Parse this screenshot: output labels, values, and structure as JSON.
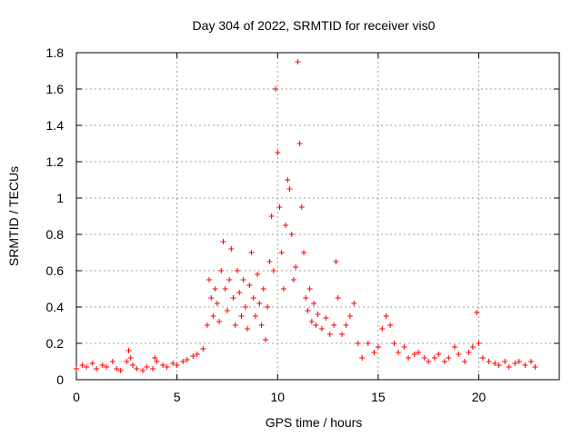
{
  "chart_data": {
    "type": "scatter",
    "title": "Day 304 of 2022, SRMTID for receiver vis0",
    "xlabel": "GPS time / hours",
    "ylabel": "SRMTID / TECUs",
    "xlim": [
      0,
      24
    ],
    "ylim": [
      0,
      1.8
    ],
    "x_ticks": [
      0,
      5,
      10,
      15,
      20
    ],
    "x_tick_labels": [
      "0",
      "5",
      "10",
      "15",
      "20"
    ],
    "y_ticks": [
      0,
      0.2,
      0.4,
      0.6,
      0.8,
      1.0,
      1.2,
      1.4,
      1.6,
      1.8
    ],
    "y_tick_labels": [
      "0",
      "0.2",
      "0.4",
      "0.6",
      "0.8",
      "1",
      "1.2",
      "1.4",
      "1.6",
      "1.8"
    ],
    "grid": true,
    "marker": "plus",
    "color": "#ff0000",
    "series": [
      {
        "name": "SRMTID vis0",
        "x": [
          0.0,
          0.3,
          0.5,
          0.8,
          1.0,
          1.3,
          1.5,
          1.8,
          2.0,
          2.2,
          2.5,
          2.6,
          2.7,
          2.8,
          3.0,
          3.3,
          3.5,
          3.8,
          3.9,
          4.0,
          4.3,
          4.5,
          4.8,
          5.0,
          5.3,
          5.5,
          5.8,
          6.0,
          6.3,
          6.5,
          6.6,
          6.7,
          6.8,
          6.9,
          7.0,
          7.1,
          7.2,
          7.3,
          7.4,
          7.5,
          7.6,
          7.7,
          7.8,
          7.9,
          8.0,
          8.1,
          8.2,
          8.3,
          8.4,
          8.5,
          8.6,
          8.7,
          8.8,
          8.9,
          9.0,
          9.1,
          9.2,
          9.3,
          9.4,
          9.5,
          9.6,
          9.7,
          9.8,
          9.9,
          10.0,
          10.1,
          10.2,
          10.3,
          10.4,
          10.5,
          10.6,
          10.7,
          10.8,
          10.9,
          11.0,
          11.1,
          11.2,
          11.3,
          11.4,
          11.5,
          11.6,
          11.7,
          11.8,
          11.9,
          12.0,
          12.2,
          12.4,
          12.6,
          12.8,
          12.9,
          13.0,
          13.2,
          13.4,
          13.6,
          13.8,
          14.0,
          14.2,
          14.5,
          14.8,
          15.0,
          15.2,
          15.4,
          15.6,
          15.8,
          16.0,
          16.3,
          16.5,
          16.8,
          17.0,
          17.3,
          17.5,
          17.8,
          18.0,
          18.3,
          18.5,
          18.8,
          19.0,
          19.3,
          19.5,
          19.7,
          19.9,
          20.0,
          20.2,
          20.5,
          20.8,
          21.0,
          21.3,
          21.5,
          21.8,
          22.0,
          22.3,
          22.6,
          22.8
        ],
        "y": [
          0.06,
          0.08,
          0.07,
          0.09,
          0.06,
          0.08,
          0.07,
          0.1,
          0.06,
          0.05,
          0.1,
          0.16,
          0.12,
          0.08,
          0.06,
          0.05,
          0.07,
          0.06,
          0.12,
          0.1,
          0.08,
          0.07,
          0.09,
          0.08,
          0.1,
          0.11,
          0.13,
          0.14,
          0.17,
          0.3,
          0.55,
          0.45,
          0.35,
          0.5,
          0.42,
          0.32,
          0.6,
          0.76,
          0.5,
          0.38,
          0.55,
          0.72,
          0.45,
          0.3,
          0.6,
          0.48,
          0.35,
          0.55,
          0.4,
          0.28,
          0.52,
          0.7,
          0.45,
          0.35,
          0.58,
          0.42,
          0.3,
          0.5,
          0.22,
          0.4,
          0.65,
          0.9,
          0.6,
          1.6,
          1.25,
          0.95,
          0.7,
          0.5,
          0.85,
          1.1,
          1.05,
          0.8,
          0.55,
          0.62,
          1.75,
          1.3,
          0.95,
          0.7,
          0.45,
          0.38,
          0.5,
          0.32,
          0.42,
          0.3,
          0.36,
          0.28,
          0.34,
          0.25,
          0.3,
          0.65,
          0.45,
          0.25,
          0.3,
          0.35,
          0.42,
          0.2,
          0.12,
          0.2,
          0.15,
          0.18,
          0.28,
          0.35,
          0.3,
          0.2,
          0.15,
          0.18,
          0.12,
          0.14,
          0.15,
          0.12,
          0.1,
          0.12,
          0.14,
          0.1,
          0.12,
          0.18,
          0.14,
          0.1,
          0.15,
          0.18,
          0.37,
          0.2,
          0.12,
          0.1,
          0.09,
          0.08,
          0.1,
          0.07,
          0.09,
          0.1,
          0.08,
          0.1,
          0.07
        ]
      }
    ]
  }
}
